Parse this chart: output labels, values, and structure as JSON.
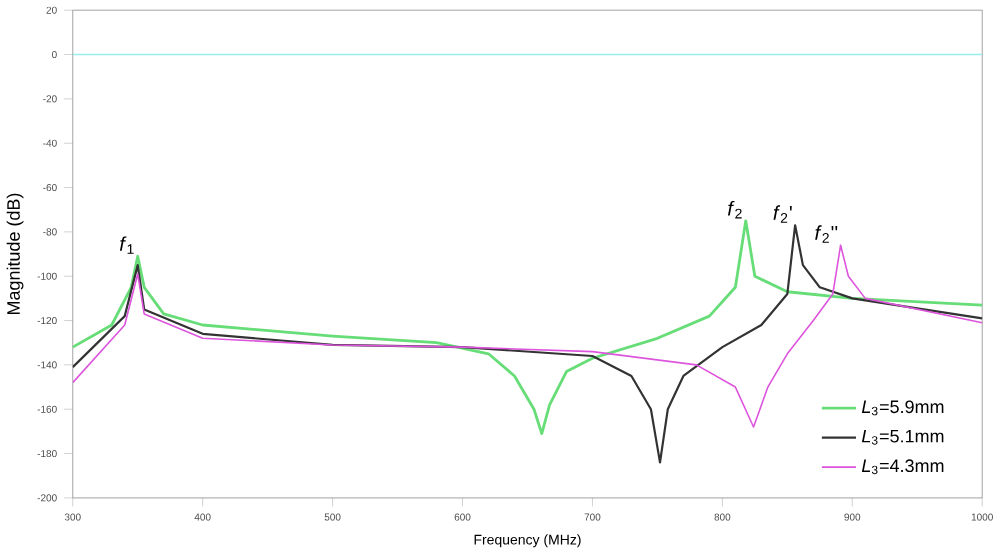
{
  "chart_data": {
    "type": "line",
    "xlabel": "Frequency (MHz)",
    "ylabel": "Magnitude (dB)",
    "xlim": [
      300,
      1000
    ],
    "ylim": [
      -200,
      20
    ],
    "xticks": [
      300,
      400,
      500,
      600,
      700,
      800,
      900,
      1000
    ],
    "yticks": [
      -200,
      -180,
      -160,
      -140,
      -120,
      -100,
      -80,
      -60,
      -40,
      -20,
      0,
      20
    ],
    "grid": false,
    "legend": "bottom right",
    "marker": "none",
    "line_style": "solid",
    "ref_lines": [
      {
        "axis": "y",
        "value": 0,
        "color": "#99eef0"
      }
    ],
    "annotations": [
      {
        "text": "*f*$_{1}$",
        "x": 350,
        "y": -91
      },
      {
        "text": "*f*$_{2}$",
        "x": 818,
        "y": -75
      },
      {
        "text": "*f*$_{2}$'",
        "x": 856,
        "y": -77
      },
      {
        "text": "*f*$_{2}$''",
        "x": 891,
        "y": -86
      }
    ],
    "series": [
      {
        "name": "*L*$_{3}$=5.9mm",
        "color": "#66dd77",
        "x": [
          300,
          330,
          345,
          350,
          355,
          370,
          400,
          500,
          580,
          620,
          640,
          655,
          661,
          667,
          680,
          700,
          750,
          790,
          810,
          818,
          825,
          850,
          900,
          1000
        ],
        "values": [
          -132,
          -122,
          -105,
          -91,
          -105,
          -117,
          -122,
          -127,
          -130,
          -135,
          -145,
          -160,
          -171,
          -158,
          -143,
          -137,
          -128,
          -118,
          -105,
          -75,
          -100,
          -107,
          -110,
          -113
        ]
      },
      {
        "name": "*L*$_{3}$=5.1mm",
        "color": "#333333",
        "x": [
          300,
          340,
          350,
          355,
          400,
          500,
          600,
          700,
          730,
          745,
          752,
          758,
          770,
          800,
          830,
          850,
          856,
          862,
          875,
          900,
          1000
        ],
        "values": [
          -141,
          -118,
          -95,
          -115,
          -126,
          -131,
          -132,
          -136,
          -145,
          -160,
          -184,
          -160,
          -145,
          -132,
          -122,
          -108,
          -77,
          -95,
          -105,
          -110,
          -119
        ]
      },
      {
        "name": "*L*$_{3}$=4.3mm",
        "color": "#dd55dd",
        "x": [
          300,
          340,
          350,
          355,
          400,
          500,
          600,
          700,
          780,
          810,
          824,
          835,
          850,
          870,
          885,
          891,
          897,
          910,
          1000
        ],
        "values": [
          -148,
          -122,
          -99,
          -117,
          -128,
          -131,
          -132,
          -134,
          -140,
          -150,
          -168,
          -150,
          -135,
          -120,
          -108,
          -86,
          -100,
          -110,
          -121
        ]
      }
    ]
  }
}
